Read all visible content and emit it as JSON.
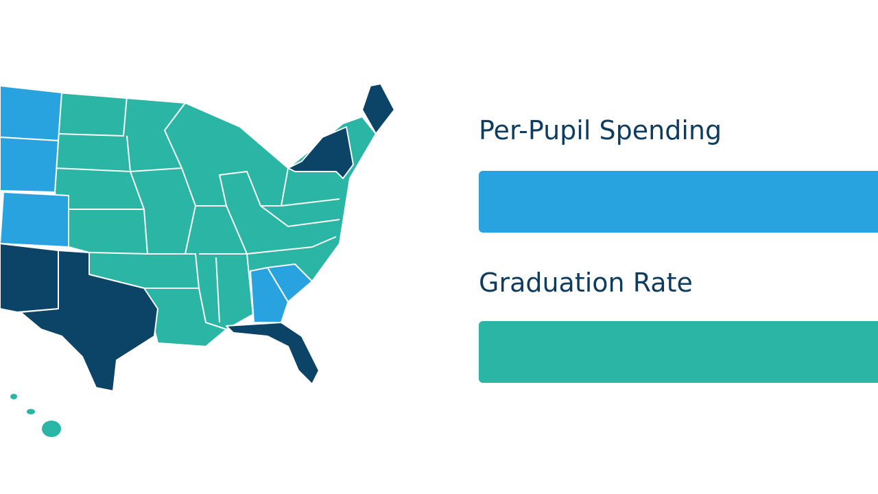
{
  "panels": [
    {
      "label": "Per-Pupil Spending"
    },
    {
      "label": "Graduation Rate"
    }
  ]
}
